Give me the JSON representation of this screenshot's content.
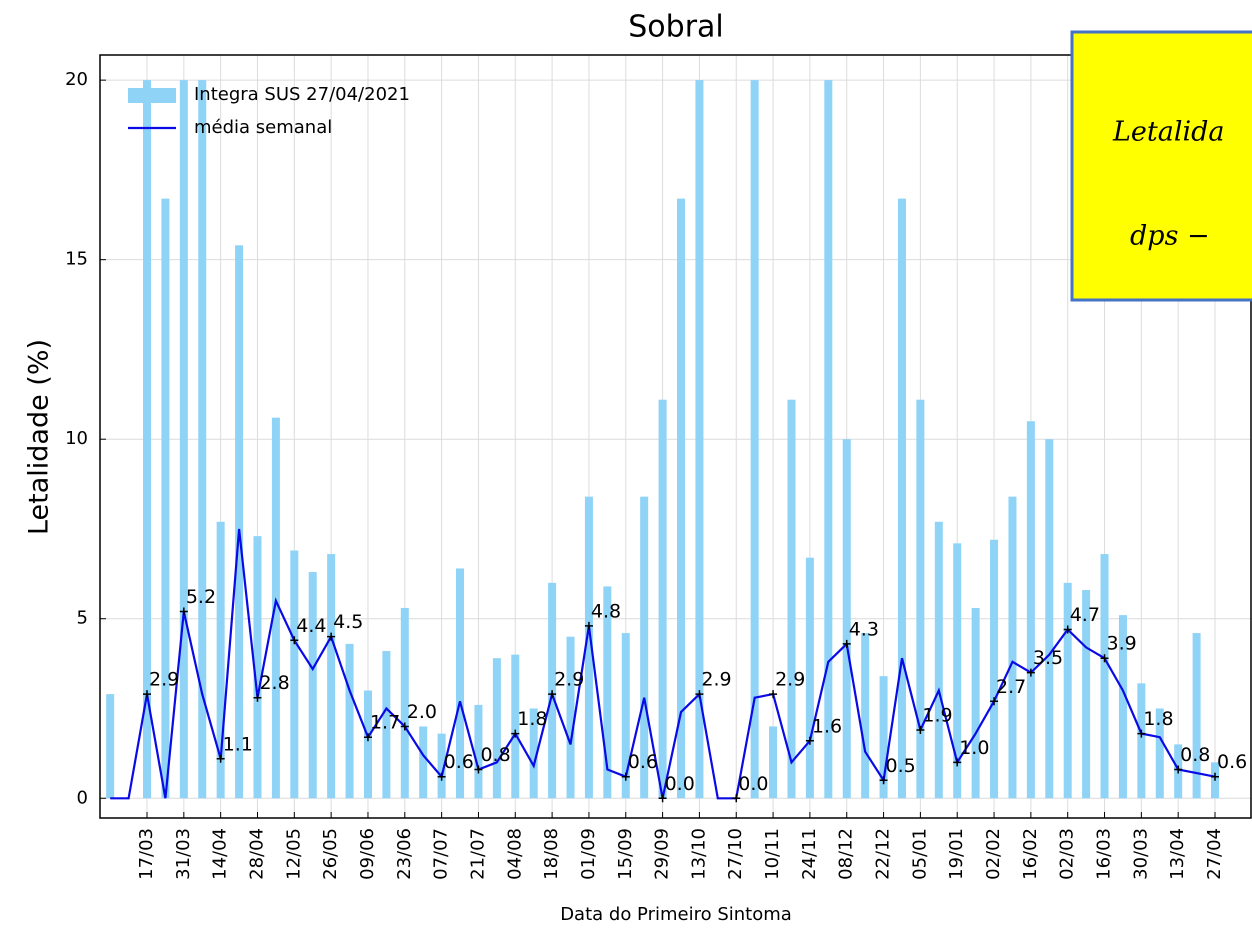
{
  "chart_data": {
    "type": "bar_line",
    "title": "Sobral",
    "xlabel": "Data do Primeiro Sintoma",
    "ylabel": "Letalidade (%)",
    "categories": [
      null,
      null,
      "17/03",
      null,
      "31/03",
      null,
      "14/04",
      null,
      "28/04",
      null,
      "12/05",
      null,
      "26/05",
      null,
      "09/06",
      null,
      "23/06",
      null,
      "07/07",
      null,
      "21/07",
      null,
      "04/08",
      null,
      "18/08",
      null,
      "01/09",
      null,
      "15/09",
      null,
      "29/09",
      null,
      "13/10",
      null,
      "27/10",
      null,
      "10/11",
      null,
      "24/11",
      null,
      "08/12",
      null,
      "22/12",
      null,
      "05/01",
      null,
      "19/01",
      null,
      "02/02",
      null,
      "16/02",
      null,
      "02/03",
      null,
      "16/03",
      null,
      "30/03",
      null,
      "13/04",
      null,
      "27/04"
    ],
    "series": [
      {
        "name": "Integra SUS 27/04/2021",
        "type": "bar",
        "color": "#8fd3f7",
        "values": [
          2.9,
          0,
          20,
          16.7,
          20,
          20,
          7.7,
          15.4,
          7.3,
          10.6,
          6.9,
          6.3,
          6.8,
          4.3,
          3.0,
          4.1,
          5.3,
          2.0,
          1.8,
          6.4,
          2.6,
          3.9,
          4.0,
          2.5,
          6.0,
          4.5,
          8.4,
          5.9,
          4.6,
          8.4,
          11.1,
          16.7,
          20,
          0,
          0,
          20,
          2.0,
          11.1,
          6.7,
          20,
          10.0,
          4.6,
          3.4,
          16.7,
          11.1,
          7.7,
          7.1,
          5.3,
          7.2,
          8.4,
          10.5,
          10.0,
          6.0,
          5.8,
          6.8,
          5.1,
          3.2,
          2.5,
          1.5,
          4.6,
          1.0
        ]
      },
      {
        "name": "média  semanal",
        "type": "line",
        "color": "#0a0ae6",
        "values": [
          0,
          0,
          2.9,
          0,
          5.2,
          2.9,
          1.1,
          7.5,
          2.8,
          5.5,
          4.4,
          3.6,
          4.5,
          3.0,
          1.7,
          2.5,
          2.0,
          1.2,
          0.6,
          2.7,
          0.8,
          1.0,
          1.8,
          0.9,
          2.9,
          1.5,
          4.8,
          0.8,
          0.6,
          2.8,
          0.0,
          2.4,
          2.9,
          0.0,
          0.0,
          2.8,
          2.9,
          1.0,
          1.6,
          3.8,
          4.3,
          1.3,
          0.5,
          3.9,
          1.9,
          3.0,
          1.0,
          1.8,
          2.7,
          3.8,
          3.5,
          4.0,
          4.7,
          4.2,
          3.9,
          3.0,
          1.8,
          1.7,
          0.8,
          0.7,
          0.6
        ],
        "value_labels": [
          null,
          null,
          "2.9",
          null,
          "5.2",
          null,
          "1.1",
          null,
          "2.8",
          null,
          "4.4",
          null,
          "4.5",
          null,
          "1.7",
          null,
          "2.0",
          null,
          "0.6",
          null,
          "0.8",
          null,
          "1.8",
          null,
          "2.9",
          null,
          "4.8",
          null,
          "0.6",
          null,
          "0.0",
          null,
          "2.9",
          null,
          "0.0",
          null,
          "2.9",
          null,
          "1.6",
          null,
          "4.3",
          null,
          "0.5",
          null,
          "1.9",
          null,
          "1.0",
          null,
          "2.7",
          null,
          "3.5",
          null,
          "4.7",
          null,
          "3.9",
          null,
          "1.8",
          null,
          "0.8",
          null,
          "0.6"
        ]
      }
    ],
    "ylim": [
      -0.55,
      20.7
    ],
    "yticks": [
      0,
      5,
      10,
      15,
      20
    ],
    "grid": true,
    "legend": "upper left",
    "annotations": [
      "Letalida",
      "dps −"
    ]
  }
}
